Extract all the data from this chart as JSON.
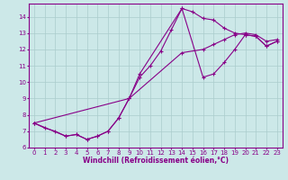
{
  "xlabel": "Windchill (Refroidissement éolien,°C)",
  "bg_color": "#cce8e8",
  "grid_color": "#aacccc",
  "line_color": "#880088",
  "xlim": [
    -0.5,
    23.5
  ],
  "ylim": [
    6,
    14.8
  ],
  "xticks": [
    0,
    1,
    2,
    3,
    4,
    5,
    6,
    7,
    8,
    9,
    10,
    11,
    12,
    13,
    14,
    15,
    16,
    17,
    18,
    19,
    20,
    21,
    22,
    23
  ],
  "yticks": [
    6,
    7,
    8,
    9,
    10,
    11,
    12,
    13,
    14
  ],
  "series1_x": [
    0,
    1,
    2,
    3,
    4,
    5,
    6,
    7,
    8,
    9,
    10,
    11,
    12,
    13,
    14,
    15,
    16,
    17,
    18,
    19,
    20,
    21,
    22,
    23
  ],
  "series1_y": [
    7.5,
    7.2,
    7.0,
    6.7,
    6.8,
    6.5,
    6.7,
    7.0,
    7.8,
    9.0,
    10.3,
    11.0,
    11.9,
    13.2,
    14.5,
    14.3,
    13.9,
    13.8,
    13.3,
    13.0,
    12.9,
    12.8,
    12.2,
    12.5
  ],
  "series2_x": [
    0,
    3,
    4,
    5,
    6,
    7,
    8,
    9,
    10,
    14,
    16,
    17,
    18,
    19,
    20,
    21,
    22,
    23
  ],
  "series2_y": [
    7.5,
    6.7,
    6.8,
    6.5,
    6.7,
    7.0,
    7.8,
    9.0,
    10.5,
    14.5,
    10.3,
    10.5,
    11.2,
    12.0,
    12.9,
    12.8,
    12.2,
    12.5
  ],
  "series3_x": [
    0,
    9,
    14,
    16,
    17,
    18,
    19,
    20,
    21,
    22,
    23
  ],
  "series3_y": [
    7.5,
    9.0,
    11.8,
    12.0,
    12.3,
    12.6,
    12.9,
    13.0,
    12.9,
    12.5,
    12.6
  ]
}
